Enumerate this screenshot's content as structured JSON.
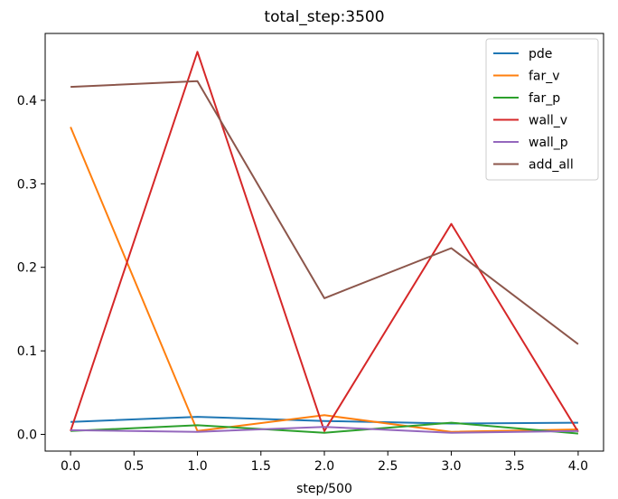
{
  "chart_data": {
    "type": "line",
    "title": "total_step:3500",
    "xlabel": "step/500",
    "ylabel": "",
    "xlim": [
      -0.2,
      4.2
    ],
    "ylim": [
      -0.02,
      0.48
    ],
    "xticks": [
      0.0,
      0.5,
      1.0,
      1.5,
      2.0,
      2.5,
      3.0,
      3.5,
      4.0
    ],
    "xtick_labels": [
      "0.0",
      "0.5",
      "1.0",
      "1.5",
      "2.0",
      "2.5",
      "3.0",
      "3.5",
      "4.0"
    ],
    "yticks": [
      0.0,
      0.1,
      0.2,
      0.3,
      0.4
    ],
    "ytick_labels": [
      "0.0",
      "0.1",
      "0.2",
      "0.3",
      "0.4"
    ],
    "grid": false,
    "legend_position": "top-right",
    "x": [
      0,
      1,
      2,
      3,
      4
    ],
    "series": [
      {
        "name": "pde",
        "color": "#1f77b4",
        "values": [
          0.015,
          0.021,
          0.016,
          0.013,
          0.014
        ]
      },
      {
        "name": "far_v",
        "color": "#ff7f0e",
        "values": [
          0.368,
          0.004,
          0.023,
          0.003,
          0.006
        ]
      },
      {
        "name": "far_p",
        "color": "#2ca02c",
        "values": [
          0.004,
          0.011,
          0.002,
          0.014,
          0.001
        ]
      },
      {
        "name": "wall_v",
        "color": "#d62728",
        "values": [
          0.004,
          0.458,
          0.004,
          0.252,
          0.003
        ]
      },
      {
        "name": "wall_p",
        "color": "#9467bd",
        "values": [
          0.005,
          0.003,
          0.009,
          0.002,
          0.004
        ]
      },
      {
        "name": "add_all",
        "color": "#8c564b",
        "values": [
          0.416,
          0.423,
          0.163,
          0.223,
          0.108
        ]
      }
    ]
  }
}
